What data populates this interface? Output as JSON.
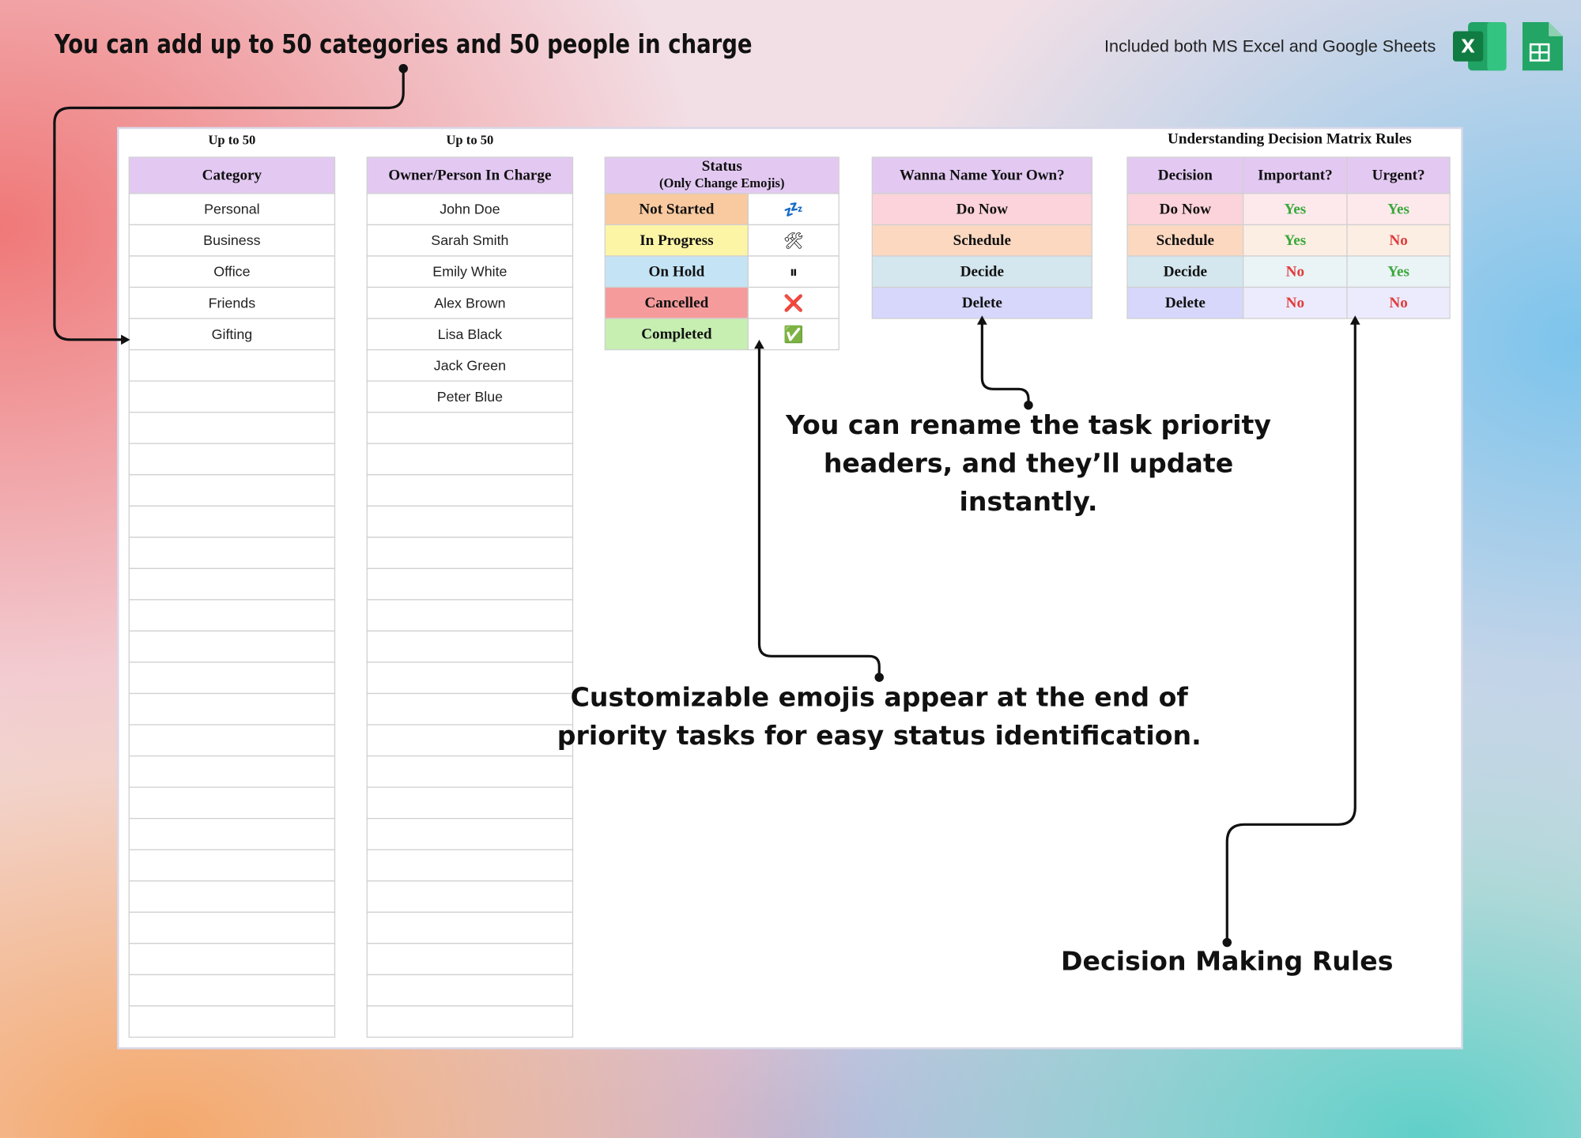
{
  "header": {
    "title": "You can add up to 50 categories and 50 people in charge",
    "subtitle": "Included both MS Excel and Google Sheets",
    "excel_icon_label": "X"
  },
  "categories": {
    "note": "Up to 50",
    "header": "Category",
    "rows": [
      "Personal",
      "Business",
      "Office",
      "Friends",
      "Gifting"
    ]
  },
  "owners": {
    "note": "Up to 50",
    "header": "Owner/Person In Charge",
    "rows": [
      "John Doe",
      "Sarah Smith",
      "Emily White",
      "Alex Brown",
      "Lisa Black",
      "Jack Green",
      "Peter Blue"
    ]
  },
  "status": {
    "header": "Status",
    "subheader": "(Only Change Emojis)",
    "rows": [
      {
        "label": "Not Started",
        "emoji": "💤"
      },
      {
        "label": "In Progress",
        "emoji": "🛠"
      },
      {
        "label": "On Hold",
        "emoji": "⏸"
      },
      {
        "label": "Cancelled",
        "emoji": "❌"
      },
      {
        "label": "Completed",
        "emoji": "✅"
      }
    ]
  },
  "priority_names": {
    "header": "Wanna Name Your Own?",
    "rows": [
      "Do Now",
      "Schedule",
      "Decide",
      "Delete"
    ]
  },
  "decision_matrix": {
    "title": "Understanding Decision Matrix Rules",
    "columns": [
      "Decision",
      "Important?",
      "Urgent?"
    ],
    "rows": [
      [
        "Do Now",
        "Yes",
        "Yes"
      ],
      [
        "Schedule",
        "Yes",
        "No"
      ],
      [
        "Decide",
        "No",
        "Yes"
      ],
      [
        "Delete",
        "No",
        "No"
      ]
    ]
  },
  "annotations": {
    "rename": [
      "You can rename the task priority",
      "headers, and they’ll update",
      "instantly."
    ],
    "emojis": [
      "Customizable emojis appear at the end of",
      "priority tasks for easy status identification."
    ],
    "rules": "Decision Making Rules"
  }
}
